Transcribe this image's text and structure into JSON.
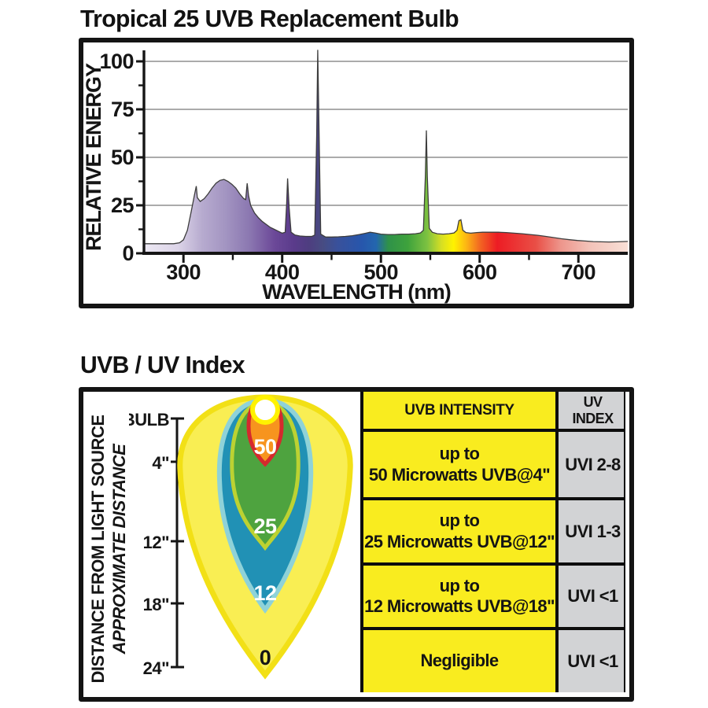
{
  "spectrum_section": {
    "title": "Tropical 25 UVB Replacement Bulb"
  },
  "chart_data": {
    "type": "area",
    "title": "Tropical 25 UVB Replacement Bulb",
    "xlabel": "WAVELENGTH (nm)",
    "ylabel": "RELATIVE ENERGY",
    "xlim": [
      260,
      750
    ],
    "ylim": [
      0,
      106
    ],
    "x_ticks": [
      300,
      400,
      500,
      600,
      700
    ],
    "x_minor_ticks": [
      350,
      450,
      550,
      650
    ],
    "y_ticks": [
      0,
      25,
      50,
      75,
      100
    ],
    "y_minor_ticks": [
      12.5,
      37.5,
      62.5,
      87.5
    ],
    "grid": "horizontal lines at y ticks 25/50/75/100",
    "legend": "none",
    "series": [
      {
        "name": "Relative energy spectrum (rainbow filled area)",
        "points": [
          [
            260,
            5
          ],
          [
            290,
            5
          ],
          [
            296,
            5.5
          ],
          [
            300,
            7
          ],
          [
            304,
            12
          ],
          [
            308,
            22
          ],
          [
            311,
            30
          ],
          [
            313,
            35
          ],
          [
            314,
            29
          ],
          [
            317,
            27
          ],
          [
            321,
            28.5
          ],
          [
            325,
            31
          ],
          [
            329,
            34
          ],
          [
            333,
            36.5
          ],
          [
            337,
            38
          ],
          [
            341,
            38.5
          ],
          [
            345,
            37.5
          ],
          [
            349,
            36
          ],
          [
            353,
            34
          ],
          [
            357,
            31
          ],
          [
            361,
            28.5
          ],
          [
            363,
            28
          ],
          [
            364.5,
            36.5
          ],
          [
            366,
            30
          ],
          [
            368,
            25
          ],
          [
            372,
            21
          ],
          [
            376,
            18.5
          ],
          [
            380,
            16.5
          ],
          [
            384,
            15
          ],
          [
            388,
            13.5
          ],
          [
            392,
            12.5
          ],
          [
            396,
            11.5
          ],
          [
            400,
            10.5
          ],
          [
            403,
            11
          ],
          [
            404.5,
            26
          ],
          [
            405.5,
            39
          ],
          [
            407,
            24
          ],
          [
            409,
            11
          ],
          [
            413,
            9.5
          ],
          [
            418,
            9
          ],
          [
            424,
            8.8
          ],
          [
            430,
            8.8
          ],
          [
            433,
            9.5
          ],
          [
            435,
            62
          ],
          [
            436,
            106
          ],
          [
            437.5,
            58
          ],
          [
            439,
            10
          ],
          [
            444,
            8.5
          ],
          [
            450,
            8.5
          ],
          [
            457,
            8.6
          ],
          [
            464,
            8.8
          ],
          [
            471,
            9.2
          ],
          [
            478,
            9.8
          ],
          [
            484,
            10.4
          ],
          [
            489,
            11
          ],
          [
            494,
            10.6
          ],
          [
            500,
            10
          ],
          [
            507,
            9.8
          ],
          [
            514,
            9.8
          ],
          [
            521,
            10
          ],
          [
            528,
            10
          ],
          [
            535,
            10.2
          ],
          [
            540,
            10.6
          ],
          [
            543,
            12
          ],
          [
            545,
            40
          ],
          [
            546,
            64
          ],
          [
            547,
            40
          ],
          [
            549,
            13
          ],
          [
            552,
            11
          ],
          [
            557,
            10.2
          ],
          [
            563,
            10
          ],
          [
            569,
            10.2
          ],
          [
            574,
            10.6
          ],
          [
            577,
            12
          ],
          [
            579,
            17
          ],
          [
            581,
            17.5
          ],
          [
            583,
            12
          ],
          [
            586,
            10.8
          ],
          [
            591,
            10.5
          ],
          [
            597,
            10.8
          ],
          [
            603,
            11
          ],
          [
            611,
            11
          ],
          [
            619,
            11
          ],
          [
            627,
            10.8
          ],
          [
            635,
            10.5
          ],
          [
            643,
            10.2
          ],
          [
            651,
            9.8
          ],
          [
            659,
            9.4
          ],
          [
            667,
            8.8
          ],
          [
            675,
            8.2
          ],
          [
            683,
            7.6
          ],
          [
            691,
            7.1
          ],
          [
            699,
            6.7
          ],
          [
            707,
            6.4
          ],
          [
            715,
            6.1
          ],
          [
            723,
            6
          ],
          [
            731,
            5.9
          ],
          [
            739,
            6
          ],
          [
            750,
            6.2
          ]
        ]
      }
    ],
    "notable_peaks": [
      [
        313,
        35
      ],
      [
        341,
        38.5
      ],
      [
        365,
        36.5
      ],
      [
        405,
        39
      ],
      [
        436,
        106
      ],
      [
        546,
        64
      ],
      [
        580,
        17.5
      ]
    ],
    "gradient_stops": [
      [
        0.0,
        "#ECE8F3"
      ],
      [
        0.07,
        "#DCD4E8"
      ],
      [
        0.12,
        "#B7ABCF"
      ],
      [
        0.17,
        "#A294C1"
      ],
      [
        0.22,
        "#8A76B0"
      ],
      [
        0.27,
        "#6B4898"
      ],
      [
        0.31,
        "#5A3B8B"
      ],
      [
        0.34,
        "#4E3D80"
      ],
      [
        0.37,
        "#474C82"
      ],
      [
        0.4,
        "#39519B"
      ],
      [
        0.45,
        "#2756AC"
      ],
      [
        0.48,
        "#2366AE"
      ],
      [
        0.505,
        "#2F9249"
      ],
      [
        0.545,
        "#3EA23C"
      ],
      [
        0.585,
        "#7CC141"
      ],
      [
        0.615,
        "#D7DF23"
      ],
      [
        0.64,
        "#FFF200"
      ],
      [
        0.665,
        "#FDB913"
      ],
      [
        0.695,
        "#F26522"
      ],
      [
        0.73,
        "#ED1C24"
      ],
      [
        0.81,
        "#E94F46"
      ],
      [
        0.86,
        "#ED948A"
      ],
      [
        0.92,
        "#F3C2B8"
      ],
      [
        1.0,
        "#F8DFD6"
      ]
    ]
  },
  "uv_section": {
    "title": "UVB / UV Index",
    "left_label_primary": "DISTANCE FROM LIGHT SOURCE",
    "left_label_secondary": "APPROXIMATE DISTANCE",
    "distance_labels": [
      "BULB",
      "4\"",
      "12\"",
      "18\"",
      "24\""
    ],
    "zone_labels": [
      "50",
      "25",
      "12",
      "0"
    ],
    "table": {
      "headers": [
        "UVB INTENSITY",
        "UV INDEX"
      ],
      "rows": [
        {
          "lines": [
            "up to",
            "50 Microwatts UVB@4\""
          ],
          "uvi": "UVI 2-8"
        },
        {
          "lines": [
            "up to",
            "25 Microwatts UVB@12\""
          ],
          "uvi": "UVI 1-3"
        },
        {
          "lines": [
            "up to",
            "12 Microwatts UVB@18\""
          ],
          "uvi": "UVI <1"
        },
        {
          "lines": [
            "Negligible"
          ],
          "uvi": "UVI <1"
        }
      ]
    },
    "colors": {
      "table_yellow": "#F9EC1F",
      "table_grey": "#D2D3D5",
      "zone_0_fill": "#F9EE53",
      "zone_0_stroke": "#F2E016",
      "zone_12_fill": "#2191B5",
      "zone_12_stroke": "#8FD2D8",
      "zone_25_fill": "#4EA33F",
      "zone_25_stroke": "#BCD232",
      "zone_50_fill": "#F7941E",
      "zone_50_stroke": "#D5292D",
      "bulb_ring": "#FFF200",
      "bulb_fill": "#FFFFFF"
    }
  }
}
